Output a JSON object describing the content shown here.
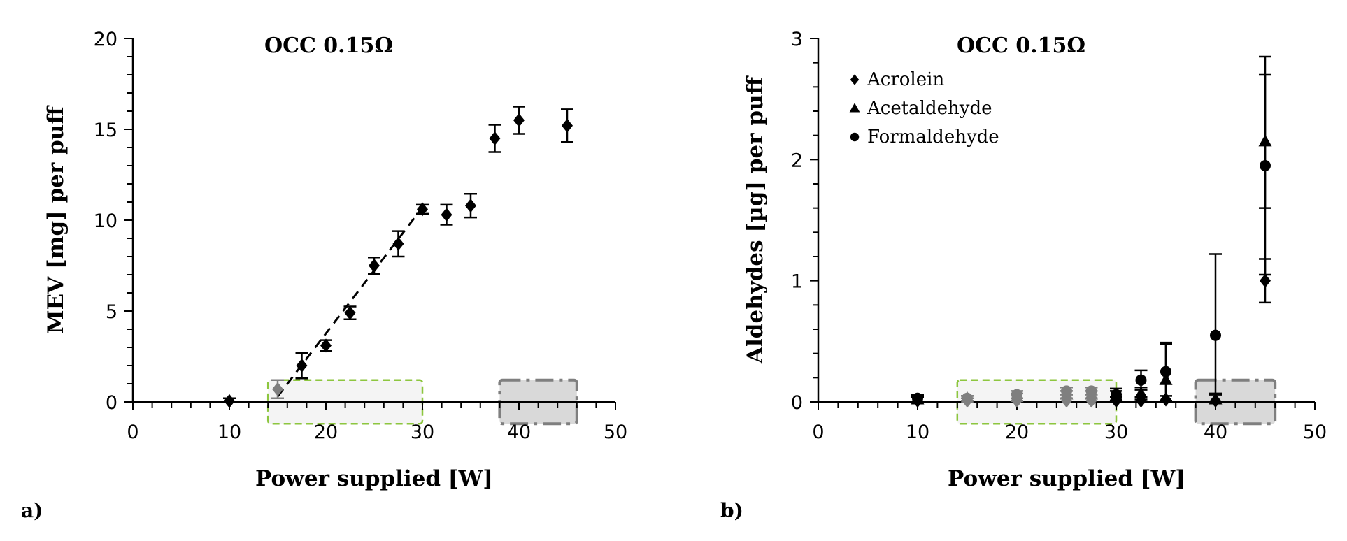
{
  "chart_data": [
    {
      "type": "scatter",
      "panel_label": "a)",
      "title": "OCC 0.15Ω",
      "xlabel": "Power supplied [W]",
      "ylabel": "MEV [mg] per puff",
      "xlim": [
        0,
        50
      ],
      "ylim": [
        0,
        20
      ],
      "xticks": [
        0,
        10,
        20,
        30,
        40,
        50
      ],
      "yticks": [
        0,
        5,
        10,
        15,
        20
      ],
      "grid": false,
      "series": [
        {
          "marker": "diamond",
          "color": "#000000",
          "points": [
            {
              "x": 10,
              "y": 0.05,
              "err": 0.15
            },
            {
              "x": 15,
              "y": 0.7,
              "err": 0.5,
              "color": "#7f7f7f"
            },
            {
              "x": 17.5,
              "y": 2.0,
              "err": 0.7
            },
            {
              "x": 20,
              "y": 3.1,
              "err": 0.3
            },
            {
              "x": 22.5,
              "y": 4.9,
              "err": 0.35
            },
            {
              "x": 25,
              "y": 7.5,
              "err": 0.45
            },
            {
              "x": 27.5,
              "y": 8.7,
              "err": 0.7
            },
            {
              "x": 30,
              "y": 10.6,
              "err": 0.25
            },
            {
              "x": 32.5,
              "y": 10.3,
              "err": 0.55
            },
            {
              "x": 35,
              "y": 10.8,
              "err": 0.65
            },
            {
              "x": 37.5,
              "y": 14.5,
              "err": 0.75
            },
            {
              "x": 40,
              "y": 15.5,
              "err": 0.75
            },
            {
              "x": 45,
              "y": 15.2,
              "err": 0.9
            }
          ]
        }
      ],
      "trendline": {
        "style": "dashed",
        "color": "#000000",
        "x": [
          15,
          30
        ],
        "y": [
          0.3,
          10.7
        ]
      },
      "regions": [
        {
          "style": "dashed",
          "stroke": "#8dc63f",
          "fill": "#f4f4f4",
          "x": [
            14,
            30
          ],
          "y": [
            -1.2,
            1.2
          ]
        },
        {
          "style": "dash-dot",
          "stroke": "#7f7f7f",
          "fill": "#d9d9d9",
          "x": [
            38,
            46
          ],
          "y": [
            -1.2,
            1.2
          ]
        }
      ]
    },
    {
      "type": "scatter",
      "panel_label": "b)",
      "title": "OCC 0.15Ω",
      "xlabel": "Power supplied [W]",
      "ylabel": "Aldehydes [µg] per puff",
      "xlim": [
        0,
        50
      ],
      "ylim": [
        0,
        3
      ],
      "xticks": [
        0,
        10,
        20,
        30,
        40,
        50
      ],
      "yticks": [
        0,
        1,
        2,
        3
      ],
      "grid": false,
      "legend": "top-left",
      "series": [
        {
          "name": "Acrolein",
          "marker": "diamond",
          "color": "#000000",
          "points": [
            {
              "x": 10,
              "y": 0.01,
              "err": 0.03
            },
            {
              "x": 15,
              "y": 0.01,
              "err": 0.02,
              "color": "#7f7f7f"
            },
            {
              "x": 20,
              "y": 0.01,
              "err": 0.02,
              "color": "#7f7f7f"
            },
            {
              "x": 25,
              "y": 0.01,
              "err": 0.02,
              "color": "#7f7f7f"
            },
            {
              "x": 27.5,
              "y": 0.01,
              "err": 0.02,
              "color": "#7f7f7f"
            },
            {
              "x": 30,
              "y": 0.01,
              "err": 0.03
            },
            {
              "x": 32.5,
              "y": 0.01,
              "err": 0.03
            },
            {
              "x": 35,
              "y": 0.02,
              "err": 0.03
            },
            {
              "x": 40,
              "y": 0.01,
              "err": 0.05
            },
            {
              "x": 45,
              "y": 1.0,
              "err": 0.18
            }
          ]
        },
        {
          "name": "Acetaldehyde",
          "marker": "triangle",
          "color": "#000000",
          "points": [
            {
              "x": 10,
              "y": 0.02,
              "err": 0.03
            },
            {
              "x": 15,
              "y": 0.03,
              "err": 0.02,
              "color": "#7f7f7f"
            },
            {
              "x": 20,
              "y": 0.04,
              "err": 0.03,
              "color": "#7f7f7f"
            },
            {
              "x": 25,
              "y": 0.06,
              "err": 0.03,
              "color": "#7f7f7f"
            },
            {
              "x": 27.5,
              "y": 0.06,
              "err": 0.03,
              "color": "#7f7f7f"
            },
            {
              "x": 30,
              "y": 0.05,
              "err": 0.04
            },
            {
              "x": 32.5,
              "y": 0.07,
              "err": 0.05
            },
            {
              "x": 35,
              "y": 0.18,
              "err": 0.3
            },
            {
              "x": 40,
              "y": 0.02,
              "err": 0.05
            },
            {
              "x": 45,
              "y": 2.15,
              "err": 0.55
            }
          ]
        },
        {
          "name": "Formaldehyde",
          "marker": "circle",
          "color": "#000000",
          "points": [
            {
              "x": 10,
              "y": 0.03,
              "err": 0.03
            },
            {
              "x": 15,
              "y": 0.03,
              "err": 0.02,
              "color": "#7f7f7f"
            },
            {
              "x": 20,
              "y": 0.06,
              "err": 0.03,
              "color": "#7f7f7f"
            },
            {
              "x": 25,
              "y": 0.09,
              "err": 0.03,
              "color": "#7f7f7f"
            },
            {
              "x": 27.5,
              "y": 0.09,
              "err": 0.03,
              "color": "#7f7f7f"
            },
            {
              "x": 30,
              "y": 0.06,
              "err": 0.05
            },
            {
              "x": 32.5,
              "y": 0.18,
              "err": 0.08
            },
            {
              "x": 35,
              "y": 0.25,
              "err": 0.24
            },
            {
              "x": 40,
              "y": 0.55,
              "err": 0.67
            },
            {
              "x": 45,
              "y": 1.95,
              "err": 0.9
            }
          ]
        }
      ],
      "regions": [
        {
          "style": "dashed",
          "stroke": "#8dc63f",
          "fill": "#f4f4f4",
          "x": [
            14,
            30
          ],
          "y": [
            -0.18,
            0.18
          ]
        },
        {
          "style": "dash-dot",
          "stroke": "#7f7f7f",
          "fill": "#d9d9d9",
          "x": [
            38,
            46
          ],
          "y": [
            -0.18,
            0.18
          ]
        }
      ]
    }
  ]
}
